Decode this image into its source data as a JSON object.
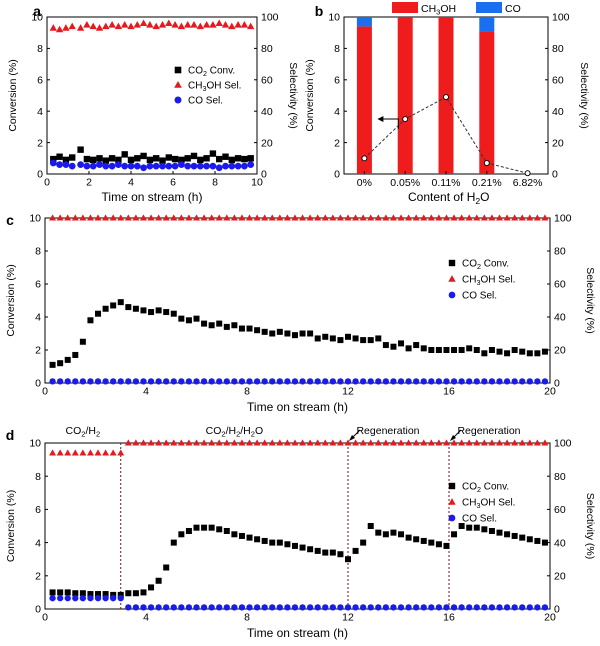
{
  "figure": {
    "panel_labels": [
      "a",
      "b",
      "c",
      "d"
    ]
  },
  "chart_data": [
    {
      "panel": "a",
      "type": "scatter",
      "xlabel": "Time on stream (h)",
      "ylabel": "Conversion (%)",
      "y2label": "Selectivity (%)",
      "xlim": [
        0,
        10
      ],
      "ylim": [
        0,
        10
      ],
      "y2lim": [
        0,
        100
      ],
      "xticks": [
        0,
        2,
        4,
        6,
        8,
        10
      ],
      "yticks": [
        0,
        2,
        4,
        6,
        8,
        10
      ],
      "y2ticks": [
        0,
        20,
        40,
        60,
        80,
        100
      ],
      "legend": {
        "position": "center-right",
        "entries": [
          {
            "pre": "CO",
            "sub": "2",
            "post": " Conv.",
            "marker": "square",
            "color": "#000000"
          },
          {
            "pre": "CH",
            "sub": "3",
            "post": "OH Sel.",
            "marker": "triangle",
            "color": "#e8191d"
          },
          {
            "pre": "CO Sel.",
            "sub": "",
            "post": "",
            "marker": "circle",
            "color": "#1a1aee"
          }
        ]
      },
      "series": [
        {
          "name": "CO2 Conv.",
          "axis": "left",
          "marker": "square",
          "color": "#000000",
          "x": [
            0.3,
            0.6,
            0.9,
            1.2,
            1.6,
            1.9,
            2.2,
            2.5,
            2.8,
            3.1,
            3.4,
            3.7,
            4.0,
            4.3,
            4.6,
            4.9,
            5.2,
            5.5,
            5.8,
            6.1,
            6.4,
            6.7,
            7.0,
            7.3,
            7.6,
            7.9,
            8.2,
            8.5,
            8.8,
            9.1,
            9.4,
            9.7
          ],
          "y": [
            0.95,
            1.1,
            0.9,
            1.05,
            1.55,
            0.95,
            0.9,
            1.0,
            0.85,
            1.0,
            0.9,
            1.25,
            0.9,
            1.0,
            1.15,
            0.9,
            1.0,
            0.85,
            1.05,
            0.95,
            0.9,
            1.0,
            1.15,
            0.9,
            1.0,
            1.3,
            0.95,
            1.1,
            0.9,
            1.0,
            0.95,
            1.0
          ]
        },
        {
          "name": "CH3OH Sel.",
          "axis": "right",
          "marker": "triangle",
          "color": "#e8191d",
          "x": [
            0.3,
            0.6,
            0.9,
            1.2,
            1.6,
            1.9,
            2.2,
            2.5,
            2.8,
            3.1,
            3.4,
            3.7,
            4.0,
            4.3,
            4.6,
            4.9,
            5.2,
            5.5,
            5.8,
            6.1,
            6.4,
            6.7,
            7.0,
            7.3,
            7.6,
            7.9,
            8.2,
            8.5,
            8.8,
            9.1,
            9.4,
            9.7
          ],
          "y": [
            93,
            92,
            93,
            94,
            93,
            95,
            94,
            93,
            94,
            95,
            94,
            95,
            94,
            95,
            96,
            95,
            94,
            95,
            96,
            95,
            94,
            95,
            95,
            94,
            95,
            95,
            96,
            95,
            94,
            95,
            95,
            94
          ]
        },
        {
          "name": "CO Sel.",
          "axis": "right",
          "marker": "circle",
          "color": "#1a1aee",
          "x": [
            0.3,
            0.6,
            0.9,
            1.2,
            1.6,
            1.9,
            2.2,
            2.5,
            2.8,
            3.1,
            3.4,
            3.7,
            4.0,
            4.3,
            4.6,
            4.9,
            5.2,
            5.5,
            5.8,
            6.1,
            6.4,
            6.7,
            7.0,
            7.3,
            7.6,
            7.9,
            8.2,
            8.5,
            8.8,
            9.1,
            9.4,
            9.7
          ],
          "y": [
            7,
            6,
            6,
            5,
            6,
            5,
            5,
            6,
            5,
            5,
            6,
            5,
            5,
            5,
            4,
            5,
            5,
            5,
            5,
            5,
            6,
            5,
            5,
            5,
            5,
            5,
            4,
            5,
            5,
            5,
            5,
            6
          ]
        }
      ]
    },
    {
      "panel": "b",
      "type": "bar",
      "xlabel_pre": "Content of H",
      "xlabel_sub": "2",
      "xlabel_post": "O",
      "ylabel": "Conversion (%)",
      "y2label": "Selectivity (%)",
      "categories": [
        "0%",
        "0.05%",
        "0.11%",
        "0.21%",
        "6.82%"
      ],
      "ylim": [
        0,
        10
      ],
      "y2lim": [
        0,
        100
      ],
      "yticks": [
        0,
        2,
        4,
        6,
        8,
        10
      ],
      "y2ticks": [
        0,
        20,
        40,
        60,
        80,
        100
      ],
      "legend": {
        "position": "top",
        "entries": [
          {
            "pre": "CH",
            "sub": "3",
            "post": "OH",
            "color": "#ee1c1c"
          },
          {
            "pre": "CO",
            "sub": "",
            "post": "",
            "color": "#1a6ff0"
          }
        ]
      },
      "series": [
        {
          "name": "CH3OH selectivity",
          "axis": "right",
          "color": "#ee1c1c",
          "values": [
            94,
            100,
            100,
            91,
            0
          ]
        },
        {
          "name": "CO selectivity",
          "axis": "right",
          "color": "#1a6ff0",
          "values": [
            6,
            0,
            0,
            9,
            0
          ]
        },
        {
          "name": "CO2 conversion",
          "axis": "left",
          "style": "dashed-line-open-circles",
          "values": [
            1.0,
            3.5,
            4.9,
            0.7,
            0.05
          ]
        }
      ],
      "annotation": "arrow pointing to left axis"
    },
    {
      "panel": "c",
      "type": "scatter",
      "xlabel": "Time on stream (h)",
      "ylabel": "Conversion (%)",
      "y2label": "Selectivity (%)",
      "xlim": [
        0,
        20
      ],
      "ylim": [
        0,
        10
      ],
      "y2lim": [
        0,
        100
      ],
      "xticks": [
        0,
        4,
        8,
        12,
        16,
        20
      ],
      "yticks": [
        0,
        2,
        4,
        6,
        8,
        10
      ],
      "y2ticks": [
        0,
        20,
        40,
        60,
        80,
        100
      ],
      "legend": {
        "position": "right",
        "entries": [
          {
            "pre": "CO",
            "sub": "2",
            "post": " Conv.",
            "marker": "square",
            "color": "#000000"
          },
          {
            "pre": "CH",
            "sub": "3",
            "post": "OH Sel.",
            "marker": "triangle",
            "color": "#e8191d"
          },
          {
            "pre": "CO Sel.",
            "sub": "",
            "post": "",
            "marker": "circle",
            "color": "#1a1aee"
          }
        ]
      },
      "series": [
        {
          "name": "CO2 Conv.",
          "axis": "left",
          "marker": "square",
          "color": "#000000",
          "x": [
            0.3,
            0.6,
            0.9,
            1.2,
            1.5,
            1.8,
            2.1,
            2.4,
            2.7,
            3.0,
            3.3,
            3.6,
            3.9,
            4.2,
            4.5,
            4.8,
            5.1,
            5.4,
            5.7,
            6.0,
            6.3,
            6.6,
            6.9,
            7.2,
            7.5,
            7.8,
            8.1,
            8.4,
            8.7,
            9.0,
            9.3,
            9.6,
            9.9,
            10.2,
            10.5,
            10.8,
            11.1,
            11.4,
            11.7,
            12.0,
            12.3,
            12.6,
            12.9,
            13.2,
            13.5,
            13.8,
            14.1,
            14.4,
            14.7,
            15.0,
            15.3,
            15.6,
            15.9,
            16.2,
            16.5,
            16.8,
            17.1,
            17.4,
            17.7,
            18.0,
            18.3,
            18.6,
            18.9,
            19.2,
            19.5,
            19.8
          ],
          "y": [
            1.1,
            1.2,
            1.4,
            1.7,
            2.5,
            3.8,
            4.2,
            4.5,
            4.7,
            4.9,
            4.6,
            4.5,
            4.4,
            4.3,
            4.4,
            4.3,
            4.2,
            3.9,
            3.8,
            3.9,
            3.6,
            3.5,
            3.6,
            3.4,
            3.5,
            3.3,
            3.3,
            3.2,
            3.1,
            3.0,
            3.1,
            3.0,
            2.9,
            3.0,
            3.0,
            2.7,
            2.8,
            2.7,
            2.6,
            2.8,
            2.7,
            2.6,
            2.6,
            2.7,
            2.3,
            2.2,
            2.4,
            2.1,
            2.3,
            2.1,
            2.0,
            2.0,
            2.0,
            2.0,
            2.0,
            2.1,
            2.0,
            1.8,
            2.0,
            1.9,
            1.8,
            2.0,
            1.9,
            1.8,
            1.8,
            1.9
          ]
        },
        {
          "name": "CH3OH Sel.",
          "axis": "right",
          "marker": "triangle",
          "count": 66,
          "value": 100,
          "color": "#e8191d"
        },
        {
          "name": "CO Sel.",
          "axis": "right",
          "marker": "circle",
          "count": 66,
          "value": 1,
          "color": "#1a1aee"
        }
      ]
    },
    {
      "panel": "d",
      "type": "scatter",
      "xlabel": "Time on stream (h)",
      "ylabel": "Conversion (%)",
      "y2label": "Selectivity (%)",
      "xlim": [
        0,
        20
      ],
      "ylim": [
        0,
        10
      ],
      "y2lim": [
        0,
        100
      ],
      "xticks": [
        0,
        4,
        8,
        12,
        16,
        20
      ],
      "yticks": [
        0,
        2,
        4,
        6,
        8,
        10
      ],
      "y2ticks": [
        0,
        20,
        40,
        60,
        80,
        100
      ],
      "vlines": [
        3,
        12,
        16
      ],
      "annotations": [
        {
          "type": "region",
          "parts": [
            {
              "t": "CO"
            },
            {
              "t": "2",
              "sub": true
            },
            {
              "t": "/H"
            },
            {
              "t": "2",
              "sub": true
            }
          ],
          "x": 1.5
        },
        {
          "type": "region",
          "parts": [
            {
              "t": "CO"
            },
            {
              "t": "2",
              "sub": true
            },
            {
              "t": "/H"
            },
            {
              "t": "2",
              "sub": true
            },
            {
              "t": "/H"
            },
            {
              "t": "2",
              "sub": true
            },
            {
              "t": "O"
            }
          ],
          "x": 7.5
        },
        {
          "type": "event",
          "text": "Regeneration",
          "x": 12
        },
        {
          "type": "event",
          "text": "Regeneration",
          "x": 16
        }
      ],
      "legend": {
        "position": "right",
        "entries": [
          {
            "pre": "CO",
            "sub": "2",
            "post": " Conv.",
            "marker": "square",
            "color": "#000000"
          },
          {
            "pre": "CH",
            "sub": "3",
            "post": "OH Sel.",
            "marker": "triangle",
            "color": "#e8191d"
          },
          {
            "pre": "CO Sel.",
            "sub": "",
            "post": "",
            "marker": "circle",
            "color": "#1a1aee"
          }
        ]
      },
      "series": [
        {
          "name": "CO2 Conv.",
          "axis": "left",
          "marker": "square",
          "color": "#000000",
          "x": [
            0.3,
            0.6,
            0.9,
            1.2,
            1.5,
            1.8,
            2.1,
            2.4,
            2.7,
            3.0,
            3.3,
            3.6,
            3.9,
            4.2,
            4.5,
            4.8,
            5.1,
            5.4,
            5.7,
            6.0,
            6.3,
            6.6,
            6.9,
            7.2,
            7.5,
            7.8,
            8.1,
            8.4,
            8.7,
            9.0,
            9.3,
            9.6,
            9.9,
            10.2,
            10.5,
            10.8,
            11.1,
            11.4,
            11.7,
            12.0,
            12.3,
            12.6,
            12.9,
            13.2,
            13.5,
            13.8,
            14.1,
            14.4,
            14.7,
            15.0,
            15.3,
            15.6,
            15.9,
            16.2,
            16.5,
            16.8,
            17.1,
            17.4,
            17.7,
            18.0,
            18.3,
            18.6,
            18.9,
            19.2,
            19.5,
            19.8
          ],
          "y": [
            1.0,
            1.0,
            1.0,
            0.95,
            0.95,
            0.9,
            0.9,
            0.9,
            0.85,
            0.85,
            0.95,
            0.95,
            1.0,
            1.3,
            1.7,
            2.5,
            4.0,
            4.5,
            4.7,
            4.9,
            4.9,
            4.9,
            4.8,
            4.7,
            4.5,
            4.4,
            4.3,
            4.2,
            4.1,
            4.0,
            4.0,
            3.9,
            3.8,
            3.7,
            3.6,
            3.5,
            3.4,
            3.4,
            3.3,
            3.0,
            3.5,
            4.0,
            5.0,
            4.6,
            4.5,
            4.6,
            4.5,
            4.3,
            4.2,
            4.1,
            4.0,
            3.9,
            3.8,
            4.5,
            5.0,
            4.9,
            4.9,
            4.8,
            4.7,
            4.6,
            4.5,
            4.4,
            4.3,
            4.2,
            4.1,
            4.0
          ]
        },
        {
          "name": "CH3OH Sel.",
          "axis": "right",
          "marker": "triangle",
          "color": "#e8191d",
          "x_before": [
            0.3,
            0.6,
            0.9,
            1.2,
            1.5,
            1.8,
            2.1,
            2.4,
            2.7,
            3.0
          ],
          "y_before": 94,
          "count_after": 56,
          "y_after": 100
        },
        {
          "name": "CO Sel.",
          "axis": "right",
          "marker": "circle",
          "color": "#1a1aee",
          "x_before": [
            0.3,
            0.6,
            0.9,
            1.2,
            1.5,
            1.8,
            2.1,
            2.4,
            2.7,
            3.0
          ],
          "y_before": 6.5,
          "count_after": 56,
          "y_after": 1
        }
      ]
    }
  ]
}
